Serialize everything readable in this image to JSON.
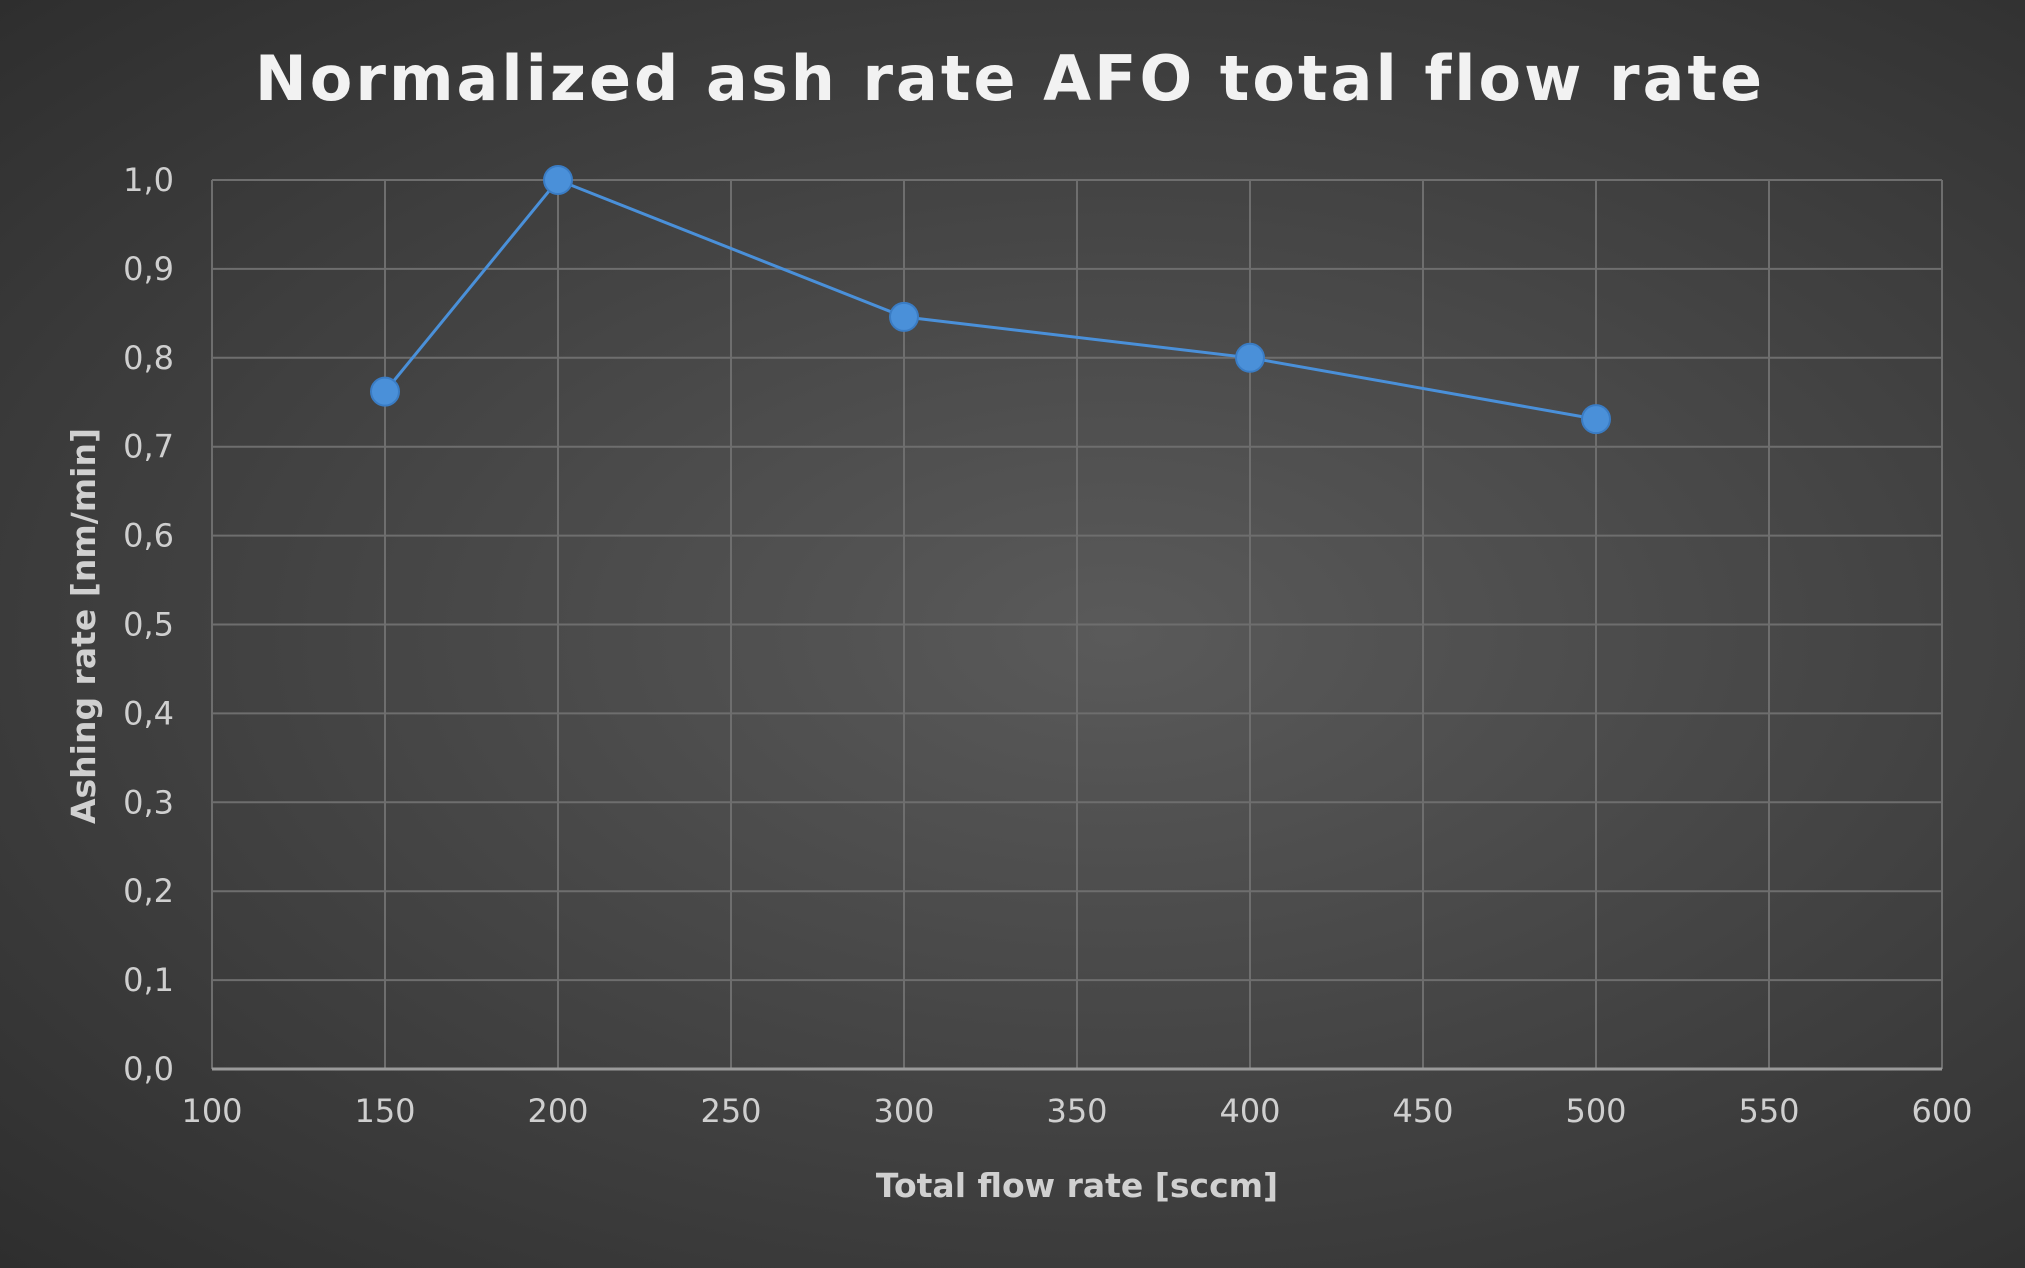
{
  "chart_data": {
    "type": "line",
    "title": "Normalized ash rate AFO total flow rate",
    "xlabel": "Total flow rate [sccm]",
    "ylabel": "Ashing rate [nm/min]",
    "xlim": [
      100,
      600
    ],
    "ylim": [
      0,
      1.0
    ],
    "xticks": [
      "100",
      "150",
      "200",
      "250",
      "300",
      "350",
      "400",
      "450",
      "500",
      "550",
      "600"
    ],
    "yticks": [
      "0,0",
      "0,1",
      "0,2",
      "0,3",
      "0,4",
      "0,5",
      "0,6",
      "0,7",
      "0,8",
      "0,9",
      "1,0"
    ],
    "grid": true,
    "series": [
      {
        "name": "Normalized ash rate",
        "color": "#4a90d9",
        "x": [
          150,
          200,
          300,
          400,
          500
        ],
        "y": [
          0.762,
          1.0,
          0.846,
          0.8,
          0.731
        ]
      }
    ]
  }
}
